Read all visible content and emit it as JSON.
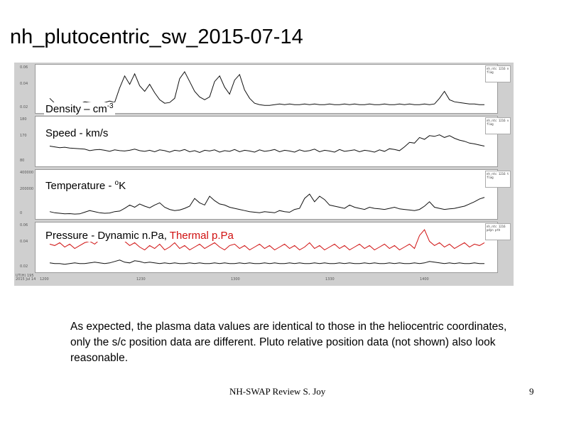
{
  "slide": {
    "title": "nh_plutocentric_sw_2015-07-14",
    "note": "As expected, the plasma data values are identical to those in the heliocentric coordinates, only the s/c position data are different. Pluto relative position data (not shown) also look reasonable.",
    "footer": "NH-SWAP Review S. Joy",
    "page_number": "9"
  },
  "plot": {
    "panels": [
      {
        "label": "Density – cm",
        "label_sup": "-3",
        "ytick_top": "0.06",
        "ytick_mid": "0.04",
        "ytick_low": "0.02",
        "legend": "nh_ntc 1216 n flag",
        "values": [
          0.02,
          0.013,
          0.012,
          0.012,
          0.011,
          0.011,
          0.012,
          0.015,
          0.014,
          0.013,
          0.012,
          0.014,
          0.016,
          0.014,
          0.035,
          0.052,
          0.04,
          0.055,
          0.038,
          0.03,
          0.04,
          0.028,
          0.018,
          0.013,
          0.014,
          0.02,
          0.048,
          0.058,
          0.044,
          0.03,
          0.022,
          0.018,
          0.022,
          0.044,
          0.052,
          0.036,
          0.026,
          0.046,
          0.054,
          0.032,
          0.02,
          0.013,
          0.011,
          0.01,
          0.01,
          0.011,
          0.012,
          0.011,
          0.012,
          0.011,
          0.011,
          0.012,
          0.011,
          0.012,
          0.011,
          0.011,
          0.012,
          0.011,
          0.011,
          0.012,
          0.011,
          0.012,
          0.011,
          0.011,
          0.012,
          0.011,
          0.011,
          0.012,
          0.011,
          0.011,
          0.012,
          0.011,
          0.012,
          0.011,
          0.011,
          0.012,
          0.011,
          0.012,
          0.02,
          0.03,
          0.018,
          0.015,
          0.014,
          0.013,
          0.012,
          0.012,
          0.011,
          0.011
        ]
      },
      {
        "label": "Speed - km/s",
        "ytick_top": "180",
        "ytick_mid": "170",
        "ytick_low": "80",
        "legend": "nh_ntc 1216 v flag",
        "values": [
          112,
          110,
          108,
          109,
          107,
          106,
          105,
          104,
          100,
          102,
          103,
          101,
          98,
          102,
          100,
          99,
          101,
          104,
          100,
          98,
          101,
          97,
          102,
          100,
          96,
          101,
          99,
          103,
          97,
          100,
          95,
          101,
          99,
          102,
          96,
          100,
          98,
          103,
          97,
          101,
          99,
          96,
          102,
          98,
          100,
          103,
          97,
          101,
          99,
          96,
          102,
          98,
          100,
          104,
          97,
          101,
          99,
          96,
          103,
          98,
          100,
          102,
          97,
          101,
          99,
          96,
          102,
          98,
          105,
          103,
          100,
          110,
          122,
          120,
          135,
          130,
          140,
          138,
          142,
          135,
          140,
          133,
          128,
          125,
          120,
          118,
          115,
          112
        ]
      },
      {
        "label": "Temperature - ",
        "label_sup": "o",
        "label_after": "K",
        "ytick_top": "400000",
        "ytick_mid": "200000",
        "ytick_low": "0",
        "legend": "nh_ntc 1216 t flag",
        "values": [
          60000,
          50000,
          45000,
          40000,
          42000,
          38000,
          40000,
          55000,
          70000,
          60000,
          50000,
          45000,
          48000,
          60000,
          65000,
          90000,
          120000,
          100000,
          130000,
          110000,
          95000,
          120000,
          140000,
          100000,
          80000,
          70000,
          75000,
          90000,
          110000,
          180000,
          140000,
          120000,
          200000,
          160000,
          130000,
          120000,
          100000,
          90000,
          80000,
          70000,
          60000,
          55000,
          50000,
          60000,
          55000,
          50000,
          70000,
          60000,
          55000,
          80000,
          90000,
          180000,
          220000,
          150000,
          200000,
          170000,
          120000,
          110000,
          100000,
          90000,
          120000,
          100000,
          90000,
          80000,
          100000,
          90000,
          85000,
          80000,
          90000,
          100000,
          85000,
          80000,
          75000,
          70000,
          80000,
          110000,
          150000,
          100000,
          90000,
          80000,
          85000,
          90000,
          100000,
          110000,
          130000,
          150000,
          175000,
          190000
        ]
      },
      {
        "label": "Pressure - Dynamic n.Pa, ",
        "label_red": "Thermal p.Pa",
        "ytick_top": "0.06",
        "ytick_mid": "0.04",
        "ytick_low": "0.02",
        "legend": "nh_ntc 1216 pdyn pth",
        "values": [
          0.012,
          0.011,
          0.011,
          0.01,
          0.011,
          0.012,
          0.011,
          0.011,
          0.012,
          0.013,
          0.012,
          0.011,
          0.012,
          0.014,
          0.016,
          0.013,
          0.012,
          0.015,
          0.014,
          0.012,
          0.013,
          0.012,
          0.011,
          0.012,
          0.011,
          0.012,
          0.011,
          0.011,
          0.012,
          0.011,
          0.012,
          0.011,
          0.011,
          0.012,
          0.011,
          0.012,
          0.011,
          0.011,
          0.012,
          0.011,
          0.012,
          0.011,
          0.011,
          0.012,
          0.011,
          0.012,
          0.011,
          0.011,
          0.012,
          0.011,
          0.012,
          0.011,
          0.011,
          0.012,
          0.011,
          0.012,
          0.011,
          0.011,
          0.012,
          0.011,
          0.012,
          0.011,
          0.011,
          0.012,
          0.011,
          0.012,
          0.011,
          0.011,
          0.012,
          0.011,
          0.012,
          0.011,
          0.011,
          0.012,
          0.011,
          0.012,
          0.014,
          0.013,
          0.012,
          0.011,
          0.012,
          0.011,
          0.012,
          0.011,
          0.011,
          0.012,
          0.011,
          0.011
        ],
        "values_red": [
          0.038,
          0.036,
          0.04,
          0.034,
          0.038,
          0.032,
          0.036,
          0.04,
          0.042,
          0.038,
          0.044,
          0.052,
          0.046,
          0.05,
          0.054,
          0.042,
          0.036,
          0.04,
          0.034,
          0.03,
          0.036,
          0.032,
          0.038,
          0.03,
          0.034,
          0.04,
          0.032,
          0.036,
          0.03,
          0.034,
          0.038,
          0.032,
          0.036,
          0.04,
          0.034,
          0.03,
          0.036,
          0.038,
          0.032,
          0.036,
          0.03,
          0.034,
          0.038,
          0.032,
          0.036,
          0.03,
          0.034,
          0.038,
          0.032,
          0.036,
          0.03,
          0.034,
          0.04,
          0.032,
          0.036,
          0.03,
          0.034,
          0.038,
          0.032,
          0.036,
          0.03,
          0.034,
          0.038,
          0.032,
          0.036,
          0.03,
          0.034,
          0.038,
          0.032,
          0.036,
          0.03,
          0.034,
          0.038,
          0.032,
          0.05,
          0.058,
          0.042,
          0.036,
          0.04,
          0.034,
          0.038,
          0.032,
          0.036,
          0.04,
          0.034,
          0.038,
          0.036,
          0.04
        ]
      }
    ],
    "xticks": [
      "1200",
      "1230",
      "1300",
      "1330",
      "1400"
    ],
    "xcorner": "UT(H) 195\n2015 Jul 14"
  },
  "colors": {
    "trace": "#111111",
    "thermal": "#d01010",
    "frame": "#cfcfcf"
  }
}
